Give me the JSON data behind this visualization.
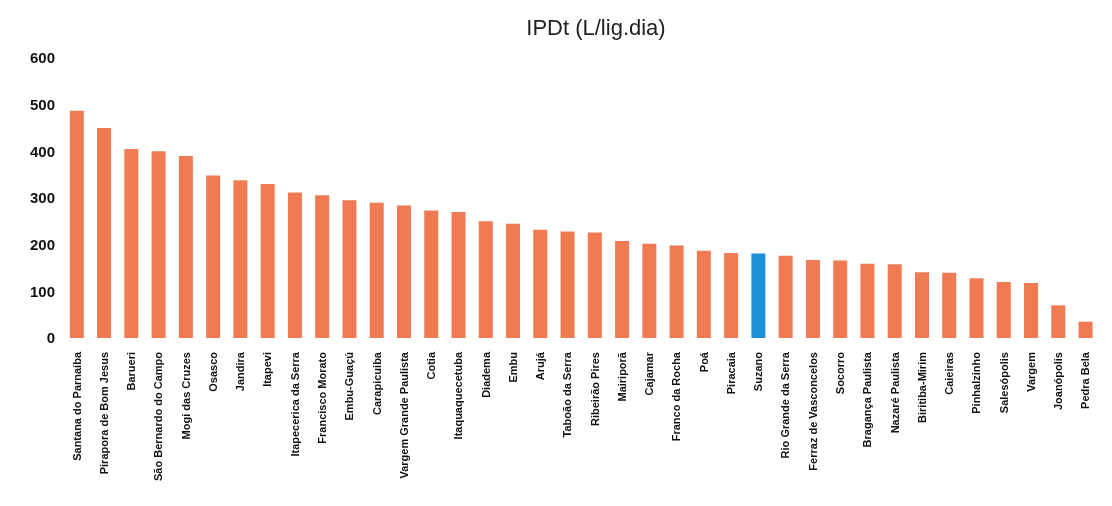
{
  "chart_data": {
    "type": "bar",
    "title": "IPDt (L/lig.dia)",
    "categories": [
      "Santana do Parnaíba",
      "Pirapora de Bom Jesus",
      "Barueri",
      "São Bernardo do Campo",
      "Mogi das Cruzes",
      "Osasco",
      "Jandira",
      "Itapevi",
      "Itapecerica da Serra",
      "Francisco Morato",
      "Embu-Guaçú",
      "Carapicuiba",
      "Vargem Grande Paulista",
      "Cotia",
      "Itaquaquecetuba",
      "Diadema",
      "Embu",
      "Arujá",
      "Taboão da Serra",
      "Ribeirão Pires",
      "Mairiporã",
      "Cajamar",
      "Franco da Rocha",
      "Poá",
      "Piracaia",
      "Suzano",
      "Rio Grande da Serra",
      "Ferraz de Vasconcelos",
      "Socorro",
      "Bragança Paulista",
      "Nazaré Paulista",
      "Biritiba-Mirim",
      "Caieiras",
      "Pinhalzinho",
      "Salesópolis",
      "Vargem",
      "Joanópolis",
      "Pedra Bela"
    ],
    "values": [
      487,
      450,
      405,
      400,
      390,
      348,
      338,
      330,
      312,
      306,
      295,
      290,
      284,
      273,
      270,
      250,
      245,
      232,
      228,
      226,
      208,
      202,
      198,
      187,
      182,
      181,
      176,
      167,
      166,
      159,
      158,
      141,
      140,
      128,
      120,
      118,
      70,
      35
    ],
    "colors": [
      "#f07a52",
      "#f07a52",
      "#f07a52",
      "#f07a52",
      "#f07a52",
      "#f07a52",
      "#f07a52",
      "#f07a52",
      "#f07a52",
      "#f07a52",
      "#f07a52",
      "#f07a52",
      "#f07a52",
      "#f07a52",
      "#f07a52",
      "#f07a52",
      "#f07a52",
      "#f07a52",
      "#f07a52",
      "#f07a52",
      "#f07a52",
      "#f07a52",
      "#f07a52",
      "#f07a52",
      "#f07a52",
      "#1e90d8",
      "#f07a52",
      "#f07a52",
      "#f07a52",
      "#f07a52",
      "#f07a52",
      "#f07a52",
      "#f07a52",
      "#f07a52",
      "#f07a52",
      "#f07a52",
      "#f07a52",
      "#f07a52"
    ],
    "ylim": [
      0,
      600
    ],
    "yticks": [
      0,
      100,
      200,
      300,
      400,
      500,
      600
    ]
  }
}
